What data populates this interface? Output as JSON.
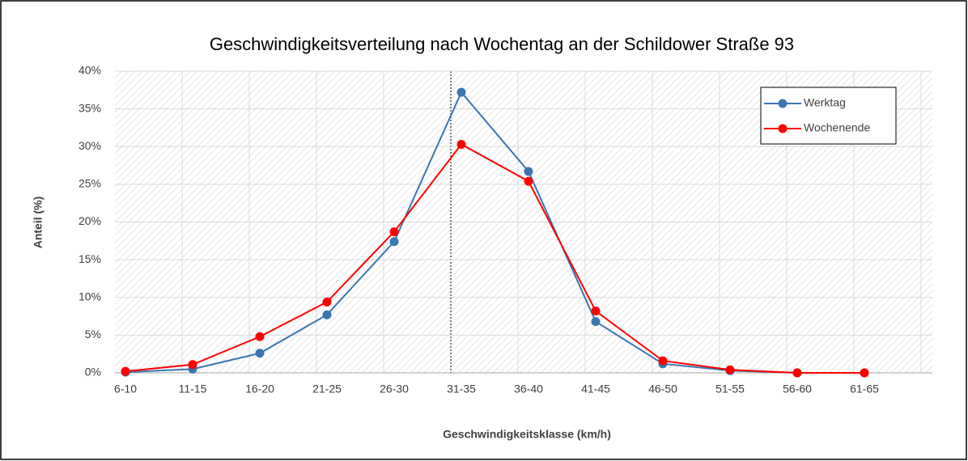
{
  "chart_data": {
    "type": "line",
    "title": "Geschwindigkeitsverteilung nach Wochentag an der Schildower Straße 93",
    "xlabel": "Geschwindigkeitsklasse (km/h)",
    "ylabel": "Anteil (%)",
    "categories": [
      "6-10",
      "11-15",
      "16-20",
      "21-25",
      "26-30",
      "31-35",
      "36-40",
      "41-45",
      "46-50",
      "51-55",
      "56-60",
      "61-65"
    ],
    "series": [
      {
        "name": "Werktag",
        "color": "#3b76b0",
        "values": [
          0.1,
          0.5,
          2.6,
          7.7,
          17.4,
          37.2,
          26.7,
          6.8,
          1.2,
          0.3,
          0,
          0
        ]
      },
      {
        "name": "Wochenende",
        "color": "#ff0000",
        "values": [
          0.2,
          1.1,
          4.8,
          9.4,
          18.7,
          30.3,
          25.4,
          8.2,
          1.6,
          0.4,
          0,
          0
        ]
      }
    ],
    "ylim": [
      0,
      40
    ],
    "yticks": [
      {
        "value": 0,
        "label": "0%"
      },
      {
        "value": 5,
        "label": "5%"
      },
      {
        "value": 10,
        "label": "10%"
      },
      {
        "value": 15,
        "label": "15%"
      },
      {
        "value": 20,
        "label": "20%"
      },
      {
        "value": 25,
        "label": "25%"
      },
      {
        "value": 30,
        "label": "30%"
      },
      {
        "value": 35,
        "label": "35%"
      },
      {
        "value": 40,
        "label": "40%"
      }
    ],
    "grid": true,
    "legend": "upper right"
  }
}
